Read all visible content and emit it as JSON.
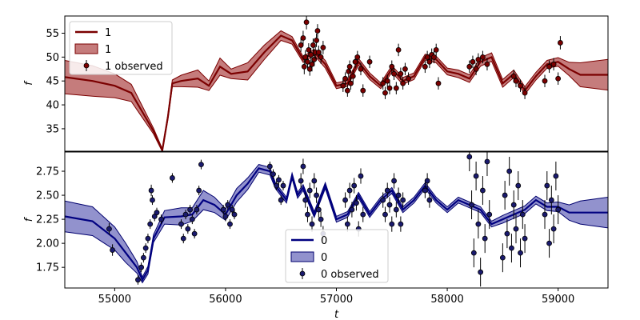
{
  "chart_data": [
    {
      "type": "line",
      "panel": "top",
      "ylabel": "f",
      "xlim": [
        54550,
        59450
      ],
      "ylim": [
        30.3,
        58.6
      ],
      "yticks": [
        35,
        40,
        45,
        50,
        55
      ],
      "colors": {
        "line": "#7b0000",
        "band": "#b25050",
        "band_edge": "#7b0000",
        "point": "#7b0000"
      },
      "legend": {
        "placement": "upper-left",
        "entries": [
          {
            "kind": "line",
            "label": "1"
          },
          {
            "kind": "band",
            "label": "1"
          },
          {
            "kind": "points",
            "label": "1 observed"
          }
        ]
      },
      "model": {
        "t": [
          54550,
          54800,
          55000,
          55150,
          55250,
          55350,
          55430,
          55480,
          55520,
          55600,
          55750,
          55850,
          55950,
          56050,
          56200,
          56350,
          56500,
          56600,
          56700,
          56800,
          56900,
          57000,
          57100,
          57200,
          57300,
          57400,
          57500,
          57600,
          57700,
          57800,
          57900,
          58000,
          58100,
          58200,
          58300,
          58400,
          58500,
          58600,
          58700,
          58800,
          58900,
          59000,
          59100,
          59200,
          59450
        ],
        "mean": [
          45.8,
          45.0,
          44.0,
          42.5,
          38.5,
          34.5,
          30.5,
          37.5,
          44.5,
          45.0,
          45.5,
          44.0,
          48.0,
          46.5,
          47.0,
          51.0,
          54.5,
          53.5,
          49.5,
          51.0,
          48.5,
          44.0,
          44.5,
          49.0,
          46.0,
          44.0,
          47.5,
          45.0,
          46.0,
          50.0,
          49.5,
          47.0,
          46.5,
          45.5,
          49.0,
          50.0,
          44.5,
          46.5,
          43.0,
          46.0,
          48.5,
          49.0,
          47.5,
          46.3,
          46.3
        ],
        "half_width": [
          3.5,
          3.2,
          2.5,
          1.8,
          1.2,
          0.6,
          0.3,
          0.5,
          0.7,
          1.2,
          1.8,
          1.0,
          1.8,
          1.0,
          1.8,
          1.5,
          1.0,
          0.8,
          0.6,
          0.6,
          0.8,
          0.6,
          0.6,
          0.7,
          0.7,
          0.6,
          0.7,
          0.7,
          0.7,
          0.6,
          0.7,
          0.7,
          0.8,
          0.8,
          0.9,
          0.9,
          0.8,
          0.8,
          0.8,
          0.8,
          0.8,
          0.9,
          1.4,
          2.5,
          3.2
        ]
      },
      "observed": [
        {
          "t": 56680,
          "y": 52.5,
          "e": 1.4
        },
        {
          "t": 56700,
          "y": 54.0,
          "e": 1.5
        },
        {
          "t": 56710,
          "y": 48.0,
          "e": 1.6
        },
        {
          "t": 56720,
          "y": 50.0,
          "e": 1.4
        },
        {
          "t": 56730,
          "y": 57.3,
          "e": 1.5
        },
        {
          "t": 56740,
          "y": 49.0,
          "e": 1.4
        },
        {
          "t": 56750,
          "y": 51.5,
          "e": 1.4
        },
        {
          "t": 56760,
          "y": 47.5,
          "e": 1.4
        },
        {
          "t": 56770,
          "y": 50.5,
          "e": 1.4
        },
        {
          "t": 56780,
          "y": 48.5,
          "e": 1.5
        },
        {
          "t": 56790,
          "y": 52.5,
          "e": 1.4
        },
        {
          "t": 56800,
          "y": 49.5,
          "e": 1.4
        },
        {
          "t": 56810,
          "y": 51.0,
          "e": 1.4
        },
        {
          "t": 56820,
          "y": 53.5,
          "e": 1.4
        },
        {
          "t": 56830,
          "y": 55.5,
          "e": 1.4
        },
        {
          "t": 56840,
          "y": 51.0,
          "e": 1.4
        },
        {
          "t": 56860,
          "y": 50.0,
          "e": 1.4
        },
        {
          "t": 56880,
          "y": 52.0,
          "e": 1.4
        },
        {
          "t": 57060,
          "y": 44.0,
          "e": 1.3
        },
        {
          "t": 57080,
          "y": 45.5,
          "e": 1.3
        },
        {
          "t": 57100,
          "y": 43.0,
          "e": 1.3
        },
        {
          "t": 57110,
          "y": 47.0,
          "e": 1.3
        },
        {
          "t": 57120,
          "y": 48.0,
          "e": 1.3
        },
        {
          "t": 57130,
          "y": 44.5,
          "e": 1.3
        },
        {
          "t": 57150,
          "y": 46.0,
          "e": 1.3
        },
        {
          "t": 57170,
          "y": 49.0,
          "e": 1.3
        },
        {
          "t": 57190,
          "y": 50.0,
          "e": 1.3
        },
        {
          "t": 57220,
          "y": 47.5,
          "e": 1.3
        },
        {
          "t": 57240,
          "y": 43.0,
          "e": 1.3
        },
        {
          "t": 57300,
          "y": 49.0,
          "e": 1.3
        },
        {
          "t": 57420,
          "y": 44.5,
          "e": 1.3
        },
        {
          "t": 57440,
          "y": 42.5,
          "e": 1.3
        },
        {
          "t": 57460,
          "y": 45.0,
          "e": 1.3
        },
        {
          "t": 57480,
          "y": 43.5,
          "e": 1.3
        },
        {
          "t": 57500,
          "y": 48.0,
          "e": 1.3
        },
        {
          "t": 57520,
          "y": 46.5,
          "e": 1.3
        },
        {
          "t": 57540,
          "y": 43.5,
          "e": 1.3
        },
        {
          "t": 57560,
          "y": 51.5,
          "e": 1.3
        },
        {
          "t": 57580,
          "y": 46.5,
          "e": 1.3
        },
        {
          "t": 57600,
          "y": 44.5,
          "e": 1.3
        },
        {
          "t": 57620,
          "y": 47.5,
          "e": 1.3
        },
        {
          "t": 57650,
          "y": 45.5,
          "e": 1.3
        },
        {
          "t": 57800,
          "y": 48.0,
          "e": 1.3
        },
        {
          "t": 57820,
          "y": 50.0,
          "e": 1.3
        },
        {
          "t": 57840,
          "y": 49.0,
          "e": 1.3
        },
        {
          "t": 57860,
          "y": 50.5,
          "e": 1.3
        },
        {
          "t": 57880,
          "y": 50.0,
          "e": 1.3
        },
        {
          "t": 57900,
          "y": 51.5,
          "e": 1.3
        },
        {
          "t": 57920,
          "y": 44.5,
          "e": 1.3
        },
        {
          "t": 58200,
          "y": 48.0,
          "e": 1.3
        },
        {
          "t": 58230,
          "y": 49.0,
          "e": 1.3
        },
        {
          "t": 58260,
          "y": 47.5,
          "e": 1.3
        },
        {
          "t": 58280,
          "y": 49.5,
          "e": 1.3
        },
        {
          "t": 58320,
          "y": 50.0,
          "e": 1.3
        },
        {
          "t": 58360,
          "y": 48.5,
          "e": 1.3
        },
        {
          "t": 58600,
          "y": 46.0,
          "e": 1.3
        },
        {
          "t": 58620,
          "y": 45.0,
          "e": 1.3
        },
        {
          "t": 58660,
          "y": 44.0,
          "e": 1.3
        },
        {
          "t": 58700,
          "y": 42.5,
          "e": 1.3
        },
        {
          "t": 58880,
          "y": 45.0,
          "e": 1.3
        },
        {
          "t": 58920,
          "y": 48.0,
          "e": 1.3
        },
        {
          "t": 58960,
          "y": 48.5,
          "e": 1.3
        },
        {
          "t": 59000,
          "y": 45.5,
          "e": 1.3
        },
        {
          "t": 59020,
          "y": 53.0,
          "e": 1.4
        }
      ]
    },
    {
      "type": "line",
      "panel": "bottom",
      "xlabel": "t",
      "ylabel": "f",
      "xlim": [
        54550,
        59450
      ],
      "ylim": [
        1.535,
        2.95
      ],
      "yticks": [
        1.75,
        2.0,
        2.25,
        2.5,
        2.75
      ],
      "xticks": [
        55000,
        56000,
        57000,
        58000,
        59000
      ],
      "colors": {
        "line": "#000080",
        "band": "#6e6ebc",
        "band_edge": "#00006e",
        "point": "#1a1a6e"
      },
      "legend": {
        "placement": "lower-center",
        "entries": [
          {
            "kind": "line",
            "label": "0"
          },
          {
            "kind": "band",
            "label": "0"
          },
          {
            "kind": "points",
            "label": "0 observed"
          }
        ]
      },
      "model": {
        "t": [
          54550,
          54800,
          55000,
          55100,
          55200,
          55250,
          55300,
          55350,
          55450,
          55600,
          55700,
          55800,
          55900,
          56000,
          56100,
          56200,
          56300,
          56400,
          56450,
          56550,
          56600,
          56650,
          56700,
          56800,
          56900,
          57000,
          57100,
          57200,
          57300,
          57400,
          57500,
          57600,
          57700,
          57800,
          57900,
          58000,
          58100,
          58200,
          58300,
          58400,
          58500,
          58600,
          58700,
          58800,
          58900,
          59000,
          59100,
          59200,
          59450
        ],
        "mean": [
          2.28,
          2.23,
          2.05,
          1.9,
          1.75,
          1.62,
          1.72,
          2.05,
          2.27,
          2.28,
          2.3,
          2.45,
          2.4,
          2.3,
          2.5,
          2.62,
          2.78,
          2.75,
          2.6,
          2.45,
          2.7,
          2.5,
          2.58,
          2.3,
          2.6,
          2.25,
          2.3,
          2.5,
          2.3,
          2.45,
          2.55,
          2.35,
          2.45,
          2.6,
          2.45,
          2.35,
          2.45,
          2.4,
          2.35,
          2.2,
          2.25,
          2.3,
          2.35,
          2.45,
          2.38,
          2.38,
          2.32,
          2.32,
          2.32
        ],
        "half_width": [
          0.16,
          0.15,
          0.12,
          0.1,
          0.06,
          0.03,
          0.04,
          0.04,
          0.07,
          0.09,
          0.07,
          0.1,
          0.08,
          0.06,
          0.07,
          0.06,
          0.04,
          0.04,
          0.03,
          0.03,
          0.03,
          0.03,
          0.03,
          0.03,
          0.03,
          0.03,
          0.03,
          0.03,
          0.03,
          0.03,
          0.03,
          0.03,
          0.03,
          0.03,
          0.03,
          0.03,
          0.03,
          0.03,
          0.03,
          0.03,
          0.04,
          0.04,
          0.04,
          0.04,
          0.04,
          0.05,
          0.08,
          0.12,
          0.16
        ]
      },
      "observed": [
        {
          "t": 54950,
          "y": 2.15,
          "e": 0.06
        },
        {
          "t": 54980,
          "y": 1.93,
          "e": 0.06
        },
        {
          "t": 55210,
          "y": 1.62,
          "e": 0.05
        },
        {
          "t": 55240,
          "y": 1.75,
          "e": 0.05
        },
        {
          "t": 55260,
          "y": 1.85,
          "e": 0.05
        },
        {
          "t": 55280,
          "y": 1.95,
          "e": 0.05
        },
        {
          "t": 55300,
          "y": 2.05,
          "e": 0.05
        },
        {
          "t": 55320,
          "y": 2.2,
          "e": 0.05
        },
        {
          "t": 55330,
          "y": 2.55,
          "e": 0.06
        },
        {
          "t": 55340,
          "y": 2.45,
          "e": 0.05
        },
        {
          "t": 55360,
          "y": 2.28,
          "e": 0.05
        },
        {
          "t": 55380,
          "y": 2.32,
          "e": 0.05
        },
        {
          "t": 55420,
          "y": 2.25,
          "e": 0.05
        },
        {
          "t": 55520,
          "y": 2.68,
          "e": 0.05
        },
        {
          "t": 55600,
          "y": 2.2,
          "e": 0.05
        },
        {
          "t": 55620,
          "y": 2.05,
          "e": 0.05
        },
        {
          "t": 55640,
          "y": 2.3,
          "e": 0.05
        },
        {
          "t": 55660,
          "y": 2.15,
          "e": 0.05
        },
        {
          "t": 55680,
          "y": 2.35,
          "e": 0.05
        },
        {
          "t": 55700,
          "y": 2.25,
          "e": 0.05
        },
        {
          "t": 55720,
          "y": 2.1,
          "e": 0.05
        },
        {
          "t": 55740,
          "y": 2.35,
          "e": 0.05
        },
        {
          "t": 55760,
          "y": 2.55,
          "e": 0.05
        },
        {
          "t": 55780,
          "y": 2.82,
          "e": 0.05
        },
        {
          "t": 55980,
          "y": 2.35,
          "e": 0.05
        },
        {
          "t": 56000,
          "y": 2.28,
          "e": 0.05
        },
        {
          "t": 56020,
          "y": 2.4,
          "e": 0.05
        },
        {
          "t": 56040,
          "y": 2.2,
          "e": 0.05
        },
        {
          "t": 56060,
          "y": 2.35,
          "e": 0.05
        },
        {
          "t": 56080,
          "y": 2.3,
          "e": 0.05
        },
        {
          "t": 56400,
          "y": 2.8,
          "e": 0.05
        },
        {
          "t": 56430,
          "y": 2.72,
          "e": 0.05
        },
        {
          "t": 56460,
          "y": 2.6,
          "e": 0.05
        },
        {
          "t": 56480,
          "y": 2.66,
          "e": 0.05
        },
        {
          "t": 56500,
          "y": 2.45,
          "e": 0.05
        },
        {
          "t": 56520,
          "y": 2.6,
          "e": 0.05
        },
        {
          "t": 56680,
          "y": 2.65,
          "e": 0.08
        },
        {
          "t": 56700,
          "y": 2.8,
          "e": 0.08
        },
        {
          "t": 56720,
          "y": 2.45,
          "e": 0.08
        },
        {
          "t": 56740,
          "y": 2.3,
          "e": 0.08
        },
        {
          "t": 56760,
          "y": 2.55,
          "e": 0.08
        },
        {
          "t": 56780,
          "y": 2.2,
          "e": 0.08
        },
        {
          "t": 56800,
          "y": 2.65,
          "e": 0.08
        },
        {
          "t": 56820,
          "y": 2.5,
          "e": 0.08
        },
        {
          "t": 56840,
          "y": 2.35,
          "e": 0.08
        },
        {
          "t": 56860,
          "y": 2.25,
          "e": 0.08
        },
        {
          "t": 56880,
          "y": 2.1,
          "e": 0.08
        },
        {
          "t": 57080,
          "y": 2.45,
          "e": 0.08
        },
        {
          "t": 57100,
          "y": 2.2,
          "e": 0.08
        },
        {
          "t": 57120,
          "y": 2.55,
          "e": 0.08
        },
        {
          "t": 57140,
          "y": 2.35,
          "e": 0.08
        },
        {
          "t": 57160,
          "y": 2.6,
          "e": 0.08
        },
        {
          "t": 57180,
          "y": 2.42,
          "e": 0.08
        },
        {
          "t": 57200,
          "y": 2.15,
          "e": 0.08
        },
        {
          "t": 57220,
          "y": 2.7,
          "e": 0.08
        },
        {
          "t": 57240,
          "y": 2.3,
          "e": 0.08
        },
        {
          "t": 57420,
          "y": 2.45,
          "e": 0.08
        },
        {
          "t": 57440,
          "y": 2.3,
          "e": 0.08
        },
        {
          "t": 57460,
          "y": 2.55,
          "e": 0.08
        },
        {
          "t": 57480,
          "y": 2.4,
          "e": 0.08
        },
        {
          "t": 57500,
          "y": 2.2,
          "e": 0.08
        },
        {
          "t": 57520,
          "y": 2.65,
          "e": 0.08
        },
        {
          "t": 57540,
          "y": 2.35,
          "e": 0.08
        },
        {
          "t": 57560,
          "y": 2.5,
          "e": 0.08
        },
        {
          "t": 57580,
          "y": 2.2,
          "e": 0.08
        },
        {
          "t": 57600,
          "y": 2.45,
          "e": 0.08
        },
        {
          "t": 57800,
          "y": 2.55,
          "e": 0.08
        },
        {
          "t": 57820,
          "y": 2.65,
          "e": 0.08
        },
        {
          "t": 57840,
          "y": 2.45,
          "e": 0.08
        },
        {
          "t": 58200,
          "y": 2.9,
          "e": 0.15
        },
        {
          "t": 58220,
          "y": 2.4,
          "e": 0.15
        },
        {
          "t": 58240,
          "y": 1.9,
          "e": 0.15
        },
        {
          "t": 58260,
          "y": 2.7,
          "e": 0.15
        },
        {
          "t": 58280,
          "y": 2.2,
          "e": 0.15
        },
        {
          "t": 58300,
          "y": 1.7,
          "e": 0.15
        },
        {
          "t": 58320,
          "y": 2.55,
          "e": 0.15
        },
        {
          "t": 58340,
          "y": 2.05,
          "e": 0.15
        },
        {
          "t": 58360,
          "y": 2.85,
          "e": 0.15
        },
        {
          "t": 58380,
          "y": 2.3,
          "e": 0.15
        },
        {
          "t": 58500,
          "y": 1.85,
          "e": 0.15
        },
        {
          "t": 58520,
          "y": 2.5,
          "e": 0.15
        },
        {
          "t": 58540,
          "y": 2.1,
          "e": 0.15
        },
        {
          "t": 58560,
          "y": 2.75,
          "e": 0.15
        },
        {
          "t": 58580,
          "y": 1.95,
          "e": 0.15
        },
        {
          "t": 58600,
          "y": 2.4,
          "e": 0.15
        },
        {
          "t": 58620,
          "y": 2.15,
          "e": 0.15
        },
        {
          "t": 58640,
          "y": 2.6,
          "e": 0.15
        },
        {
          "t": 58660,
          "y": 1.9,
          "e": 0.15
        },
        {
          "t": 58680,
          "y": 2.3,
          "e": 0.15
        },
        {
          "t": 58700,
          "y": 2.05,
          "e": 0.15
        },
        {
          "t": 58880,
          "y": 2.3,
          "e": 0.15
        },
        {
          "t": 58900,
          "y": 2.6,
          "e": 0.15
        },
        {
          "t": 58920,
          "y": 2.0,
          "e": 0.15
        },
        {
          "t": 58940,
          "y": 2.45,
          "e": 0.15
        },
        {
          "t": 58960,
          "y": 2.15,
          "e": 0.15
        },
        {
          "t": 58980,
          "y": 2.7,
          "e": 0.15
        },
        {
          "t": 59000,
          "y": 2.35,
          "e": 0.15
        }
      ]
    }
  ]
}
